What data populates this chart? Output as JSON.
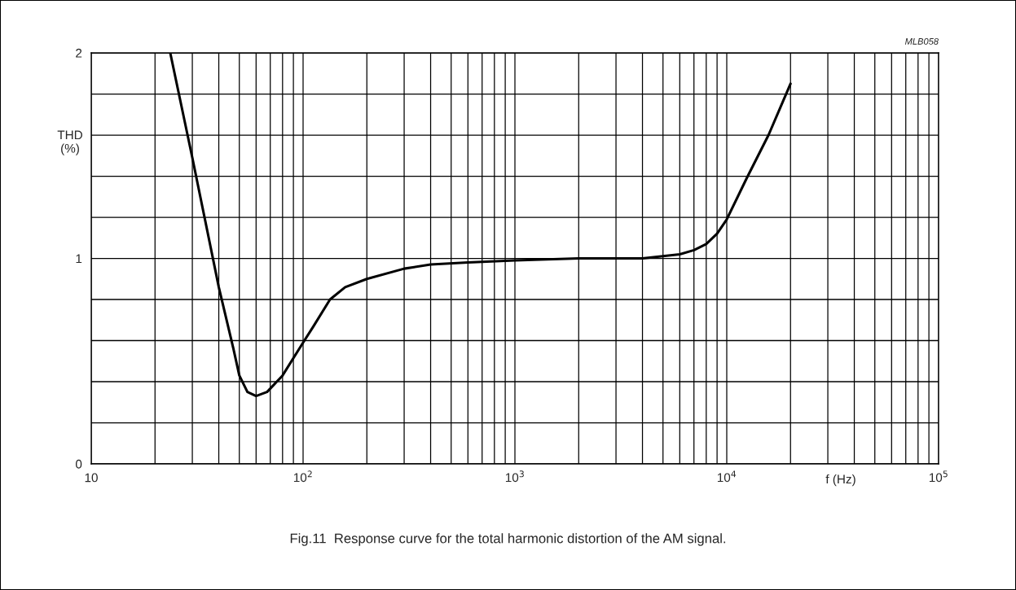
{
  "chart_data": {
    "type": "line",
    "log": "x",
    "xlabel": "f (Hz)",
    "ylabel": "THD\n(%)",
    "annotations": [
      "MLB058",
      "Fig.11  Response curve for the total harmonic distortion of the AM signal."
    ],
    "series": [
      {
        "color": "#000000",
        "x": [
          23.6,
          30,
          40,
          46.9,
          50,
          54.6,
          60,
          67.6,
          80,
          100,
          112,
          134,
          158,
          200,
          300,
          400,
          600,
          1000,
          2000,
          2820,
          4000,
          6000,
          7000,
          8000,
          9000,
          10000,
          12420,
          15740,
          20000
        ],
        "values": [
          2.0,
          1.49,
          0.86,
          0.56,
          0.43,
          0.35,
          0.33,
          0.35,
          0.43,
          0.59,
          0.67,
          0.8,
          0.86,
          0.9,
          0.95,
          0.97,
          0.98,
          0.99,
          1.0,
          1.0,
          1.0,
          1.02,
          1.04,
          1.07,
          1.12,
          1.19,
          1.39,
          1.6,
          1.85
        ]
      }
    ],
    "xlim": [
      10,
      100000
    ],
    "ylim": [
      0,
      2
    ],
    "xticks": [
      10,
      {
        "value": 20,
        "label": null
      },
      {
        "value": 30,
        "label": null
      },
      {
        "value": 40,
        "label": null
      },
      {
        "value": 50,
        "label": null
      },
      {
        "value": 60,
        "label": null
      },
      {
        "value": 70,
        "label": null
      },
      {
        "value": 80,
        "label": null
      },
      {
        "value": 90,
        "label": null
      },
      {
        "value": 100,
        "label": "10$^{2}$"
      },
      {
        "value": 200,
        "label": null
      },
      {
        "value": 300,
        "label": null
      },
      {
        "value": 400,
        "label": null
      },
      {
        "value": 500,
        "label": null
      },
      {
        "value": 600,
        "label": null
      },
      {
        "value": 700,
        "label": null
      },
      {
        "value": 800,
        "label": null
      },
      {
        "value": 900,
        "label": null
      },
      {
        "value": 1000,
        "label": "10$^{3}$"
      },
      {
        "value": 2000,
        "label": null
      },
      {
        "value": 3000,
        "label": null
      },
      {
        "value": 4000,
        "label": null
      },
      {
        "value": 5000,
        "label": null
      },
      {
        "value": 6000,
        "label": null
      },
      {
        "value": 7000,
        "label": null
      },
      {
        "value": 8000,
        "label": null
      },
      {
        "value": 9000,
        "label": null
      },
      {
        "value": 10000,
        "label": "10$^{4}$"
      },
      {
        "value": 20000,
        "label": null
      },
      {
        "value": 30000,
        "label": null
      },
      {
        "value": 40000,
        "label": null
      },
      {
        "value": 50000,
        "label": null
      },
      {
        "value": 60000,
        "label": null
      },
      {
        "value": 70000,
        "label": null
      },
      {
        "value": 80000,
        "label": null
      },
      {
        "value": 90000,
        "label": null
      },
      {
        "value": 100000,
        "label": "10$^{5}$"
      }
    ],
    "yticks": [
      0,
      {
        "value": 0.2,
        "label": null
      },
      {
        "value": 0.4,
        "label": null
      },
      {
        "value": 0.6,
        "label": null
      },
      {
        "value": 0.8,
        "label": null
      },
      1,
      {
        "value": 1.2,
        "label": null
      },
      {
        "value": 1.4,
        "label": null
      },
      {
        "value": 1.6,
        "label": null
      },
      {
        "value": 1.8,
        "label": null
      },
      2
    ],
    "grid": true,
    "legend": false,
    "line_style": "solid",
    "marker": "none"
  }
}
